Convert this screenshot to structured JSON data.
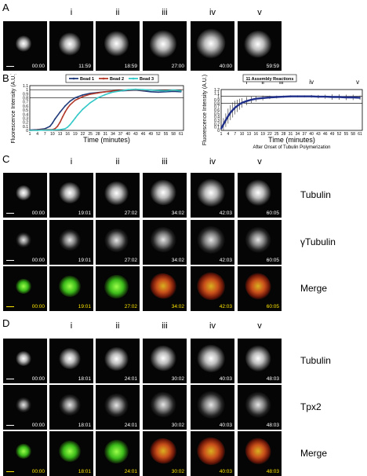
{
  "panels": {
    "A": {
      "letter": "A",
      "columns": [
        "",
        "i",
        "ii",
        "iii",
        "iv",
        "v"
      ],
      "timestamps": [
        "00:00",
        "11:59",
        "18:59",
        "27:00",
        "40:00",
        "59:59"
      ]
    },
    "B": {
      "letter": "B"
    },
    "C": {
      "letter": "C",
      "columns": [
        "",
        "i",
        "ii",
        "iii",
        "iv",
        "v"
      ],
      "rows": [
        {
          "label": "Tubulin",
          "timestamps": [
            "00:00",
            "19:01",
            "27:02",
            "34:02",
            "42:03",
            "60:05"
          ]
        },
        {
          "label": "γTubulin",
          "timestamps": [
            "00:00",
            "19:01",
            "27:02",
            "34:02",
            "42:03",
            "60:05"
          ]
        },
        {
          "label": "Merge",
          "timestamps": [
            "00:00",
            "19:01",
            "27:02",
            "34:02",
            "42:03",
            "60:05"
          ]
        }
      ]
    },
    "D": {
      "letter": "D",
      "columns": [
        "",
        "i",
        "ii",
        "iii",
        "iv",
        "v"
      ],
      "rows": [
        {
          "label": "Tubulin",
          "timestamps": [
            "00:00",
            "18:01",
            "24:01",
            "30:02",
            "40:03",
            "48:03"
          ]
        },
        {
          "label": "Tpx2",
          "timestamps": [
            "00:00",
            "18:01",
            "24:01",
            "30:02",
            "40:03",
            "48:03"
          ]
        },
        {
          "label": "Merge",
          "timestamps": [
            "00:00",
            "18:01",
            "24:01",
            "30:02",
            "40:03",
            "48:03"
          ]
        }
      ]
    }
  },
  "chart_data": [
    {
      "type": "line",
      "xlabel": "Time (minutes)",
      "ylabel": "Fluorescence Intensity (A.U.)",
      "x_ticks": [
        "1",
        "4",
        "7",
        "10",
        "13",
        "16",
        "19",
        "22",
        "25",
        "28",
        "31",
        "34",
        "37",
        "40",
        "43",
        "46",
        "49",
        "52",
        "55",
        "58",
        "61"
      ],
      "y_ticks": [
        "0",
        "0.1",
        "0.2",
        "0.3",
        "0.4",
        "0.5",
        "0.6",
        "0.7",
        "0.8",
        "0.9",
        "1",
        "1.1"
      ],
      "xlim": [
        1,
        62
      ],
      "ylim": [
        0,
        1.1
      ],
      "legend_position": "top",
      "series": [
        {
          "name": "Bead 1",
          "color": "#1f3a7a",
          "x": [
            1,
            4,
            7,
            9,
            10,
            11,
            13,
            15,
            17,
            19,
            22,
            25,
            28,
            31,
            34,
            37,
            40,
            43,
            46,
            49,
            52,
            55,
            58,
            61
          ],
          "y": [
            0.01,
            0.02,
            0.04,
            0.1,
            0.18,
            0.28,
            0.45,
            0.6,
            0.72,
            0.8,
            0.87,
            0.91,
            0.93,
            0.95,
            0.96,
            0.97,
            0.98,
            0.99,
            0.97,
            0.95,
            0.94,
            0.95,
            0.96,
            0.95
          ]
        },
        {
          "name": "Bead 2",
          "color": "#b23a2a",
          "x": [
            1,
            4,
            7,
            10,
            11,
            12,
            13,
            14,
            15,
            16,
            17,
            19,
            22,
            25,
            28,
            31,
            34,
            37,
            40,
            43,
            46,
            49,
            52,
            55,
            58,
            61
          ],
          "y": [
            0.0,
            0.01,
            0.02,
            0.02,
            0.04,
            0.1,
            0.2,
            0.33,
            0.45,
            0.55,
            0.63,
            0.74,
            0.83,
            0.89,
            0.92,
            0.95,
            0.97,
            0.98,
            0.99,
            1.0,
            0.99,
            0.99,
            0.98,
            0.98,
            0.98,
            0.98
          ]
        },
        {
          "name": "Bead 3",
          "color": "#33c8c8",
          "x": [
            1,
            4,
            7,
            10,
            13,
            15,
            16,
            17,
            18,
            19,
            20,
            22,
            25,
            28,
            31,
            34,
            37,
            40,
            43,
            46,
            49,
            52,
            55,
            58,
            61
          ],
          "y": [
            0.0,
            0.0,
            0.01,
            0.01,
            0.02,
            0.04,
            0.08,
            0.14,
            0.22,
            0.3,
            0.38,
            0.52,
            0.68,
            0.8,
            0.88,
            0.94,
            0.97,
            1.0,
            1.01,
            1.0,
            0.99,
            0.98,
            0.97,
            0.99,
            0.97
          ]
        }
      ],
      "markers": [
        {
          "label": "i",
          "x": 12
        },
        {
          "label": "ii",
          "x": 19
        },
        {
          "label": "iii",
          "x": 27
        },
        {
          "label": "iv",
          "x": 40
        },
        {
          "label": "v",
          "x": 60
        }
      ]
    },
    {
      "type": "line",
      "title": "11 Assembly Reactions",
      "xlabel": "Time (minutes)",
      "xlabel_sub": "After Onset of Tubulin Polymerization",
      "ylabel": "Fluorescence Intensity (A.U.)",
      "x_ticks": [
        "1",
        "4",
        "7",
        "10",
        "13",
        "16",
        "19",
        "22",
        "25",
        "28",
        "31",
        "34",
        "37",
        "40",
        "43",
        "46",
        "49",
        "52",
        "55",
        "58",
        "61"
      ],
      "y_ticks": [
        "0",
        "0.1",
        "0.2",
        "0.3",
        "0.4",
        "0.5",
        "0.6",
        "0.7",
        "0.8",
        "0.9",
        "1",
        "1.1",
        "1.2"
      ],
      "xlim": [
        1,
        62
      ],
      "ylim": [
        0,
        1.2
      ],
      "series": [
        {
          "color": "#1f2f8a",
          "x": [
            1,
            2,
            3,
            4,
            5,
            6,
            7,
            8,
            9,
            10,
            12,
            14,
            16,
            19,
            22,
            25,
            28,
            31,
            34,
            37,
            40,
            43,
            46,
            49,
            52,
            55,
            58,
            61
          ],
          "y": [
            0.05,
            0.18,
            0.3,
            0.42,
            0.52,
            0.6,
            0.67,
            0.72,
            0.77,
            0.81,
            0.86,
            0.9,
            0.93,
            0.95,
            0.97,
            0.98,
            0.99,
            1.0,
            1.0,
            1.0,
            1.0,
            0.99,
            0.99,
            0.98,
            0.98,
            0.97,
            0.97,
            0.96
          ],
          "err": [
            0.05,
            0.18,
            0.2,
            0.22,
            0.22,
            0.22,
            0.2,
            0.18,
            0.16,
            0.14,
            0.12,
            0.1,
            0.08,
            0.07,
            0.05,
            0.04,
            0.03,
            0.03,
            0.03,
            0.03,
            0.04,
            0.05,
            0.06,
            0.08,
            0.08,
            0.08,
            0.08,
            0.06
          ]
        }
      ],
      "markers": [
        {
          "label": "i",
          "x": 12
        },
        {
          "label": "ii",
          "x": 19
        },
        {
          "label": "iii",
          "x": 27
        },
        {
          "label": "iv",
          "x": 40
        },
        {
          "label": "v",
          "x": 60
        }
      ]
    }
  ]
}
